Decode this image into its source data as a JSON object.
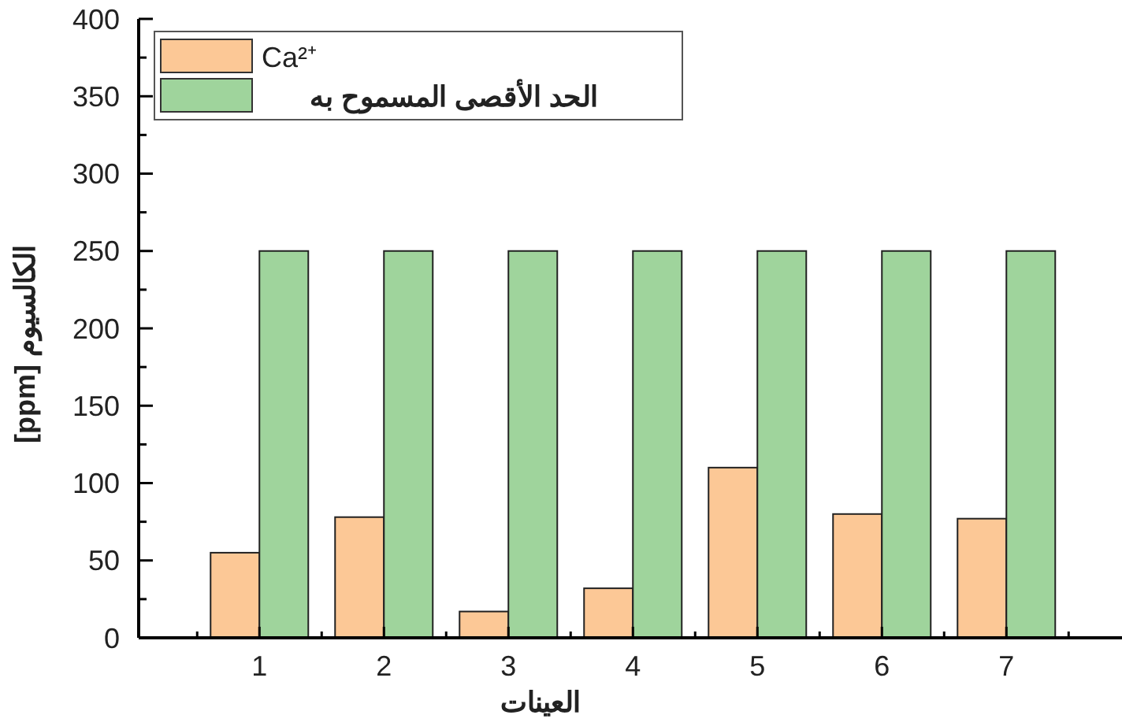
{
  "chart_data": {
    "type": "bar",
    "xlabel": "العينات",
    "ylabel": "[ppm] الكالسيوم",
    "categories": [
      "1",
      "2",
      "3",
      "4",
      "5",
      "6",
      "7"
    ],
    "series": [
      {
        "name": "Ca²⁺",
        "color": "#fcc896",
        "values": [
          55,
          78,
          17,
          32,
          110,
          80,
          77
        ]
      },
      {
        "name": "الحد الأقصى المسموح به",
        "color": "#9fd49c",
        "values": [
          250,
          250,
          250,
          250,
          250,
          250,
          250
        ]
      }
    ],
    "ylim": [
      0,
      400
    ],
    "yticks": [
      0,
      {
        "value": 25,
        "label": null
      },
      50,
      {
        "value": 75,
        "label": null
      },
      100,
      {
        "value": 125,
        "label": null
      },
      150,
      {
        "value": 175,
        "label": null
      },
      200,
      {
        "value": 225,
        "label": null
      },
      250,
      {
        "value": 275,
        "label": null
      },
      300,
      {
        "value": 325,
        "label": null
      },
      350,
      {
        "value": 375,
        "label": null
      },
      400
    ],
    "legend": "top left"
  }
}
